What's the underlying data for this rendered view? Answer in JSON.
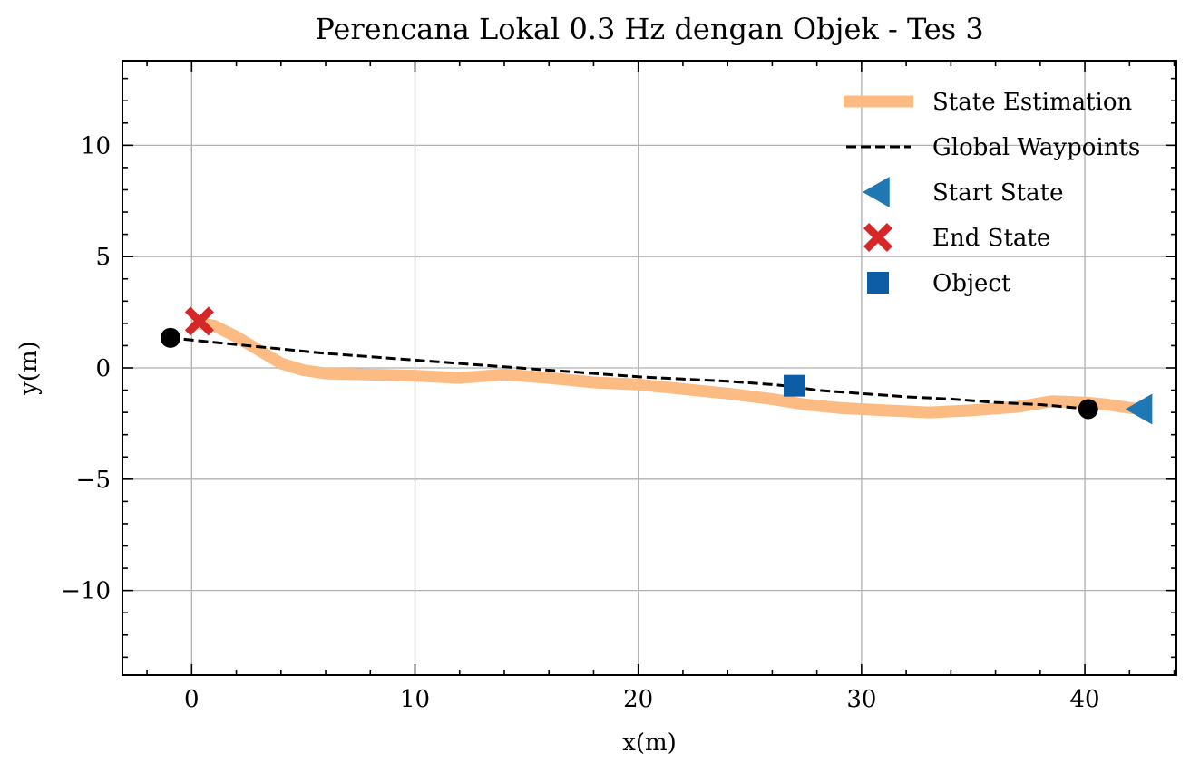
{
  "chart_data": {
    "type": "line",
    "title": "Perencana Lokal 0.3 Hz dengan Objek - Tes 3",
    "xlabel": "x(m)",
    "ylabel": "y(m)",
    "xlim": [
      -3.1,
      44.1
    ],
    "ylim": [
      -13.8,
      13.8
    ],
    "xticks": [
      0,
      10,
      20,
      30,
      40
    ],
    "yticks": [
      -10,
      -5,
      0,
      5,
      10
    ],
    "xtick_labels": [
      "0",
      "10",
      "20",
      "30",
      "40"
    ],
    "ytick_labels": [
      "−10",
      "−5",
      "0",
      "5",
      "10"
    ],
    "grid": true,
    "legend_position": "top-right",
    "series": [
      {
        "name": "State Estimation",
        "style": "thick-line",
        "color": "#fdbb84",
        "x": [
          0.3,
          1.0,
          2.0,
          3.0,
          4.0,
          5.0,
          6.0,
          8.0,
          10.0,
          12.0,
          14.0,
          16.0,
          18.0,
          20.0,
          22.0,
          24.0,
          26.0,
          27.5,
          29.0,
          31.0,
          33.0,
          35.0,
          37.0,
          38.5,
          40.0,
          41.0,
          42.0,
          42.5
        ],
        "y": [
          2.0,
          1.9,
          1.4,
          0.8,
          0.2,
          -0.1,
          -0.25,
          -0.3,
          -0.35,
          -0.45,
          -0.3,
          -0.45,
          -0.65,
          -0.75,
          -0.95,
          -1.15,
          -1.4,
          -1.65,
          -1.8,
          -1.9,
          -2.0,
          -1.9,
          -1.75,
          -1.5,
          -1.55,
          -1.65,
          -1.8,
          -1.85
        ]
      },
      {
        "name": "Global Waypoints",
        "style": "dashed-line",
        "color": "#000000",
        "x": [
          -1.0,
          0.0,
          2.0,
          4.0,
          6.0,
          8.0,
          10.0,
          12.0,
          14.0,
          16.0,
          18.0,
          20.0,
          22.0,
          24.0,
          26.0,
          27.0,
          28.0,
          30.0,
          32.0,
          34.0,
          36.0,
          38.0,
          40.2
        ],
        "y": [
          1.35,
          1.25,
          1.05,
          0.85,
          0.65,
          0.5,
          0.35,
          0.2,
          0.05,
          -0.1,
          -0.25,
          -0.4,
          -0.5,
          -0.6,
          -0.75,
          -0.85,
          -1.0,
          -1.15,
          -1.3,
          -1.4,
          -1.55,
          -1.65,
          -1.85
        ]
      },
      {
        "name": "Start State",
        "style": "marker-triangle-left",
        "color": "#1f77b4",
        "x": [
          42.5
        ],
        "y": [
          -1.85
        ]
      },
      {
        "name": "End State",
        "style": "marker-x-filled",
        "color": "#d62728",
        "x": [
          0.35
        ],
        "y": [
          2.1
        ]
      },
      {
        "name": "Object",
        "style": "marker-square",
        "color": "#0c5da5",
        "x": [
          27.0
        ],
        "y": [
          -0.8
        ]
      }
    ],
    "waypoint_endpoints": {
      "style": "marker-circle",
      "color": "#000000",
      "x": [
        -0.95,
        40.15
      ],
      "y": [
        1.35,
        -1.85
      ]
    }
  }
}
